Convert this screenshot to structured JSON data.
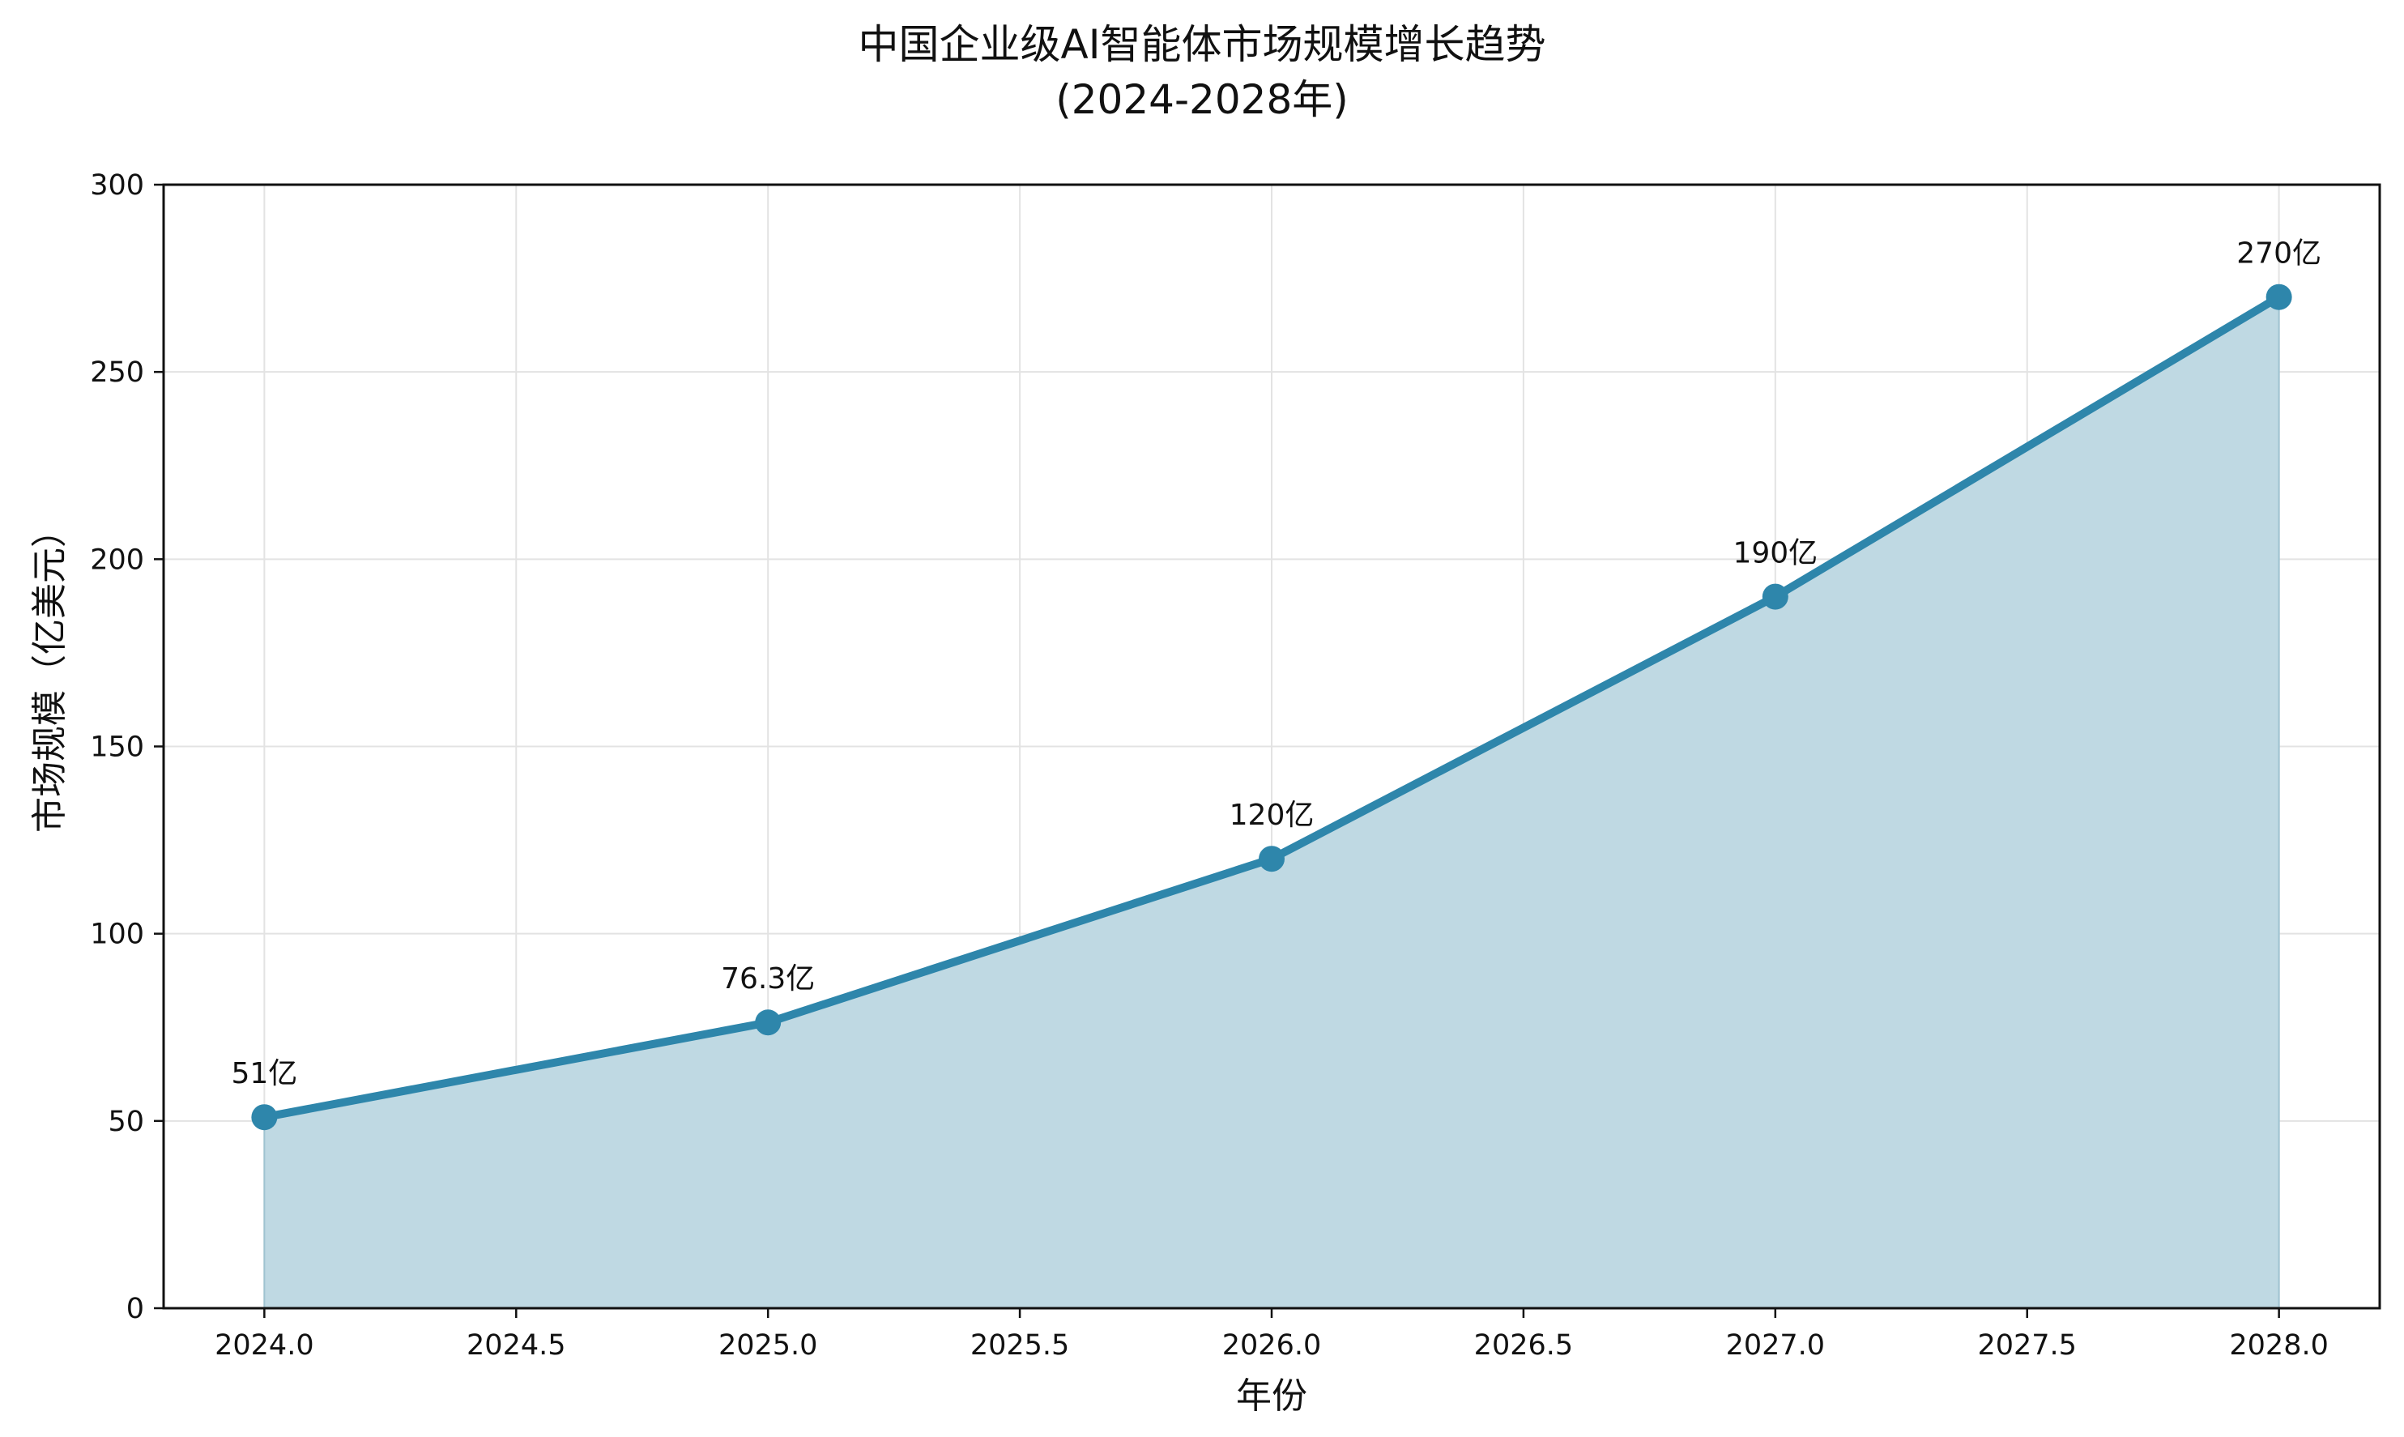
{
  "chart_data": {
    "type": "area",
    "title_line1": "中国企业级AI智能体市场规模增长趋势",
    "title_line2": "(2024-2028年)",
    "xlabel": "年份",
    "ylabel": "市场规模（亿美元）",
    "x": [
      2024,
      2025,
      2026,
      2027,
      2028
    ],
    "values": [
      51,
      76.3,
      120,
      190,
      270
    ],
    "data_labels": [
      "51亿",
      "76.3亿",
      "120亿",
      "190亿",
      "270亿"
    ],
    "xlim": [
      2023.8,
      2028.2
    ],
    "ylim": [
      0,
      300
    ],
    "x_ticks": [
      "2024.0",
      "2024.5",
      "2025.0",
      "2025.5",
      "2026.0",
      "2026.5",
      "2027.0",
      "2027.5",
      "2028.0"
    ],
    "y_ticks": [
      "0",
      "50",
      "100",
      "150",
      "200",
      "250",
      "300"
    ],
    "grid": true,
    "colors": {
      "line": "#2e86ab",
      "fill": "#bfd9e3",
      "grid": "#e3e3e3"
    }
  }
}
